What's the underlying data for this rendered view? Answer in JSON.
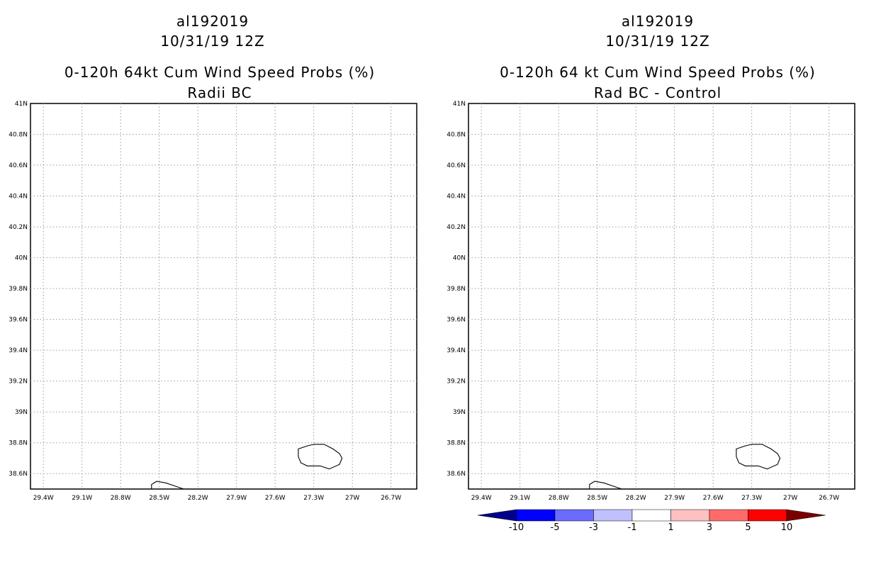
{
  "panels": [
    {
      "storm_id": "al192019",
      "datetime": "10/31/19 12Z",
      "title": "0-120h 64kt Cum Wind Speed Probs (%)",
      "subtitle": "Radii BC"
    },
    {
      "storm_id": "al192019",
      "datetime": "10/31/19 12Z",
      "title": "0-120h 64 kt Cum Wind Speed Probs (%)",
      "subtitle": "Rad BC - Control"
    }
  ],
  "map": {
    "lat_labels": [
      "41N",
      "40.8N",
      "40.6N",
      "40.4N",
      "40.2N",
      "40N",
      "39.8N",
      "39.6N",
      "39.4N",
      "39.2N",
      "39N",
      "38.8N",
      "38.6N"
    ],
    "lon_labels": [
      "29.4W",
      "29.1W",
      "28.8W",
      "28.5W",
      "28.2W",
      "27.9W",
      "27.6W",
      "27.3W",
      "27W",
      "26.7W"
    ],
    "lat_range": [
      38.5,
      41.0
    ],
    "lon_range": [
      -29.5,
      -26.5
    ],
    "gridlines": "dotted",
    "islands": [
      {
        "name": "island-east",
        "lonlat": [
          [
            -27.35,
            38.78
          ],
          [
            -27.3,
            38.79
          ],
          [
            -27.22,
            38.79
          ],
          [
            -27.15,
            38.76
          ],
          [
            -27.1,
            38.73
          ],
          [
            -27.08,
            38.7
          ],
          [
            -27.1,
            38.66
          ],
          [
            -27.18,
            38.63
          ],
          [
            -27.25,
            38.65
          ],
          [
            -27.35,
            38.65
          ],
          [
            -27.4,
            38.67
          ],
          [
            -27.42,
            38.71
          ],
          [
            -27.42,
            38.76
          ],
          [
            -27.35,
            38.78
          ]
        ]
      },
      {
        "name": "island-southwest",
        "lonlat": [
          [
            -28.56,
            38.5
          ],
          [
            -28.56,
            38.53
          ],
          [
            -28.52,
            38.55
          ],
          [
            -28.45,
            38.54
          ],
          [
            -28.38,
            38.52
          ],
          [
            -28.31,
            38.5
          ]
        ]
      }
    ]
  },
  "colorbar": {
    "labels": [
      "-10",
      "-5",
      "-3",
      "-1",
      "1",
      "3",
      "5",
      "10"
    ],
    "colors": [
      "#00008c",
      "#0000ff",
      "#6b6bff",
      "#c0c0ff",
      "#ffffff",
      "#ffc0c0",
      "#ff6b6b",
      "#ff0000",
      "#7a0000"
    ]
  }
}
